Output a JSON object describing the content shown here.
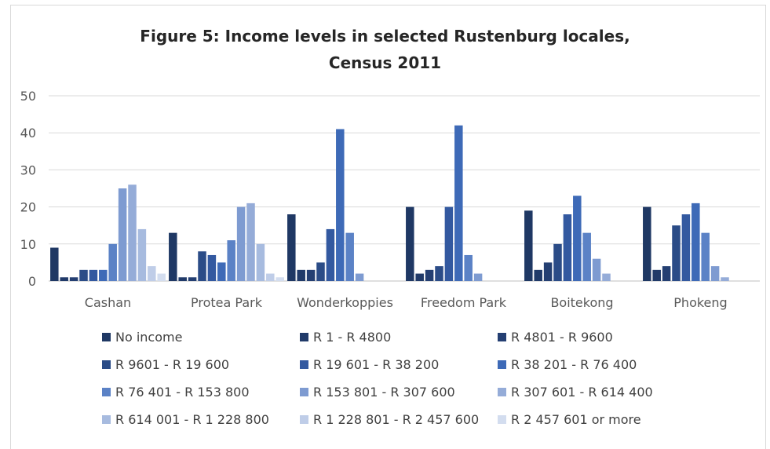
{
  "chart_data": {
    "type": "bar",
    "title": "Figure 5: Income levels in selected Rustenburg locales,",
    "subtitle": "Census 2011",
    "categories": [
      "Cashan",
      "Protea Park",
      "Wonderkoppies",
      "Freedom Park",
      "Boitekong",
      "Phokeng"
    ],
    "yticks": [
      "0",
      "10",
      "20",
      "30",
      "40",
      "50"
    ],
    "ylim": [
      0,
      50
    ],
    "grid": true,
    "legend_position": "bottom",
    "series": [
      {
        "name": "No income",
        "color": "#1f3864",
        "values": [
          9,
          13,
          18,
          20,
          19,
          20
        ]
      },
      {
        "name": "R 1 - R 4800",
        "color": "#203a69",
        "values": [
          1,
          1,
          3,
          2,
          3,
          3
        ]
      },
      {
        "name": "R 4801 - R 9600",
        "color": "#243f72",
        "values": [
          1,
          1,
          3,
          3,
          5,
          4
        ]
      },
      {
        "name": "R 9601 - R 19 600",
        "color": "#2b4c87",
        "values": [
          3,
          8,
          5,
          4,
          10,
          15
        ]
      },
      {
        "name": "R 19 601 - R 38 200",
        "color": "#3359a0",
        "values": [
          3,
          7,
          14,
          20,
          18,
          18
        ]
      },
      {
        "name": "R 38 201 - R 76 400",
        "color": "#3e6ab7",
        "values": [
          3,
          5,
          41,
          42,
          23,
          21
        ]
      },
      {
        "name": "R 76 401 - R 153 800",
        "color": "#5b82c6",
        "values": [
          10,
          11,
          13,
          7,
          13,
          13
        ]
      },
      {
        "name": "R 153 801 - R 307 600",
        "color": "#7e9bd1",
        "values": [
          25,
          20,
          2,
          2,
          6,
          4
        ]
      },
      {
        "name": "R 307 601 - R 614 400",
        "color": "#95acd8",
        "values": [
          26,
          21,
          0,
          0,
          2,
          1
        ]
      },
      {
        "name": "R 614 001 - R 1 228 800",
        "color": "#a7bbdf",
        "values": [
          14,
          10,
          0,
          0,
          0,
          0
        ]
      },
      {
        "name": "R 1 228 801 - R 2 457 600",
        "color": "#bfcde8",
        "values": [
          4,
          2,
          0,
          0,
          0,
          0
        ]
      },
      {
        "name": "R 2 457 601 or more",
        "color": "#d3ddef",
        "values": [
          2,
          1,
          0,
          0,
          0,
          0
        ]
      }
    ]
  }
}
